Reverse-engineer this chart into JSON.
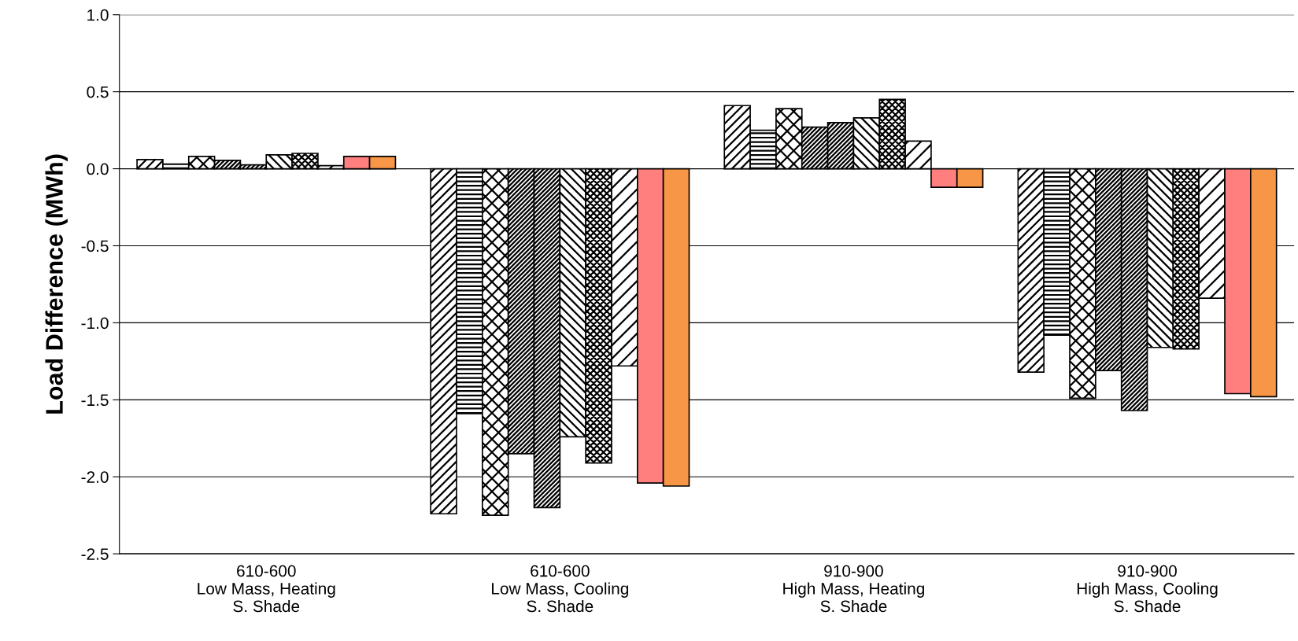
{
  "chart_data": {
    "type": "bar",
    "ylabel": "Load Difference (MWh)",
    "categories": [
      "610-600\nLow Mass, Heating\nS. Shade",
      "610-600\nLow Mass, Cooling\nS. Shade",
      "910-900\nHigh Mass, Heating\nS. Shade",
      "910-900\nHigh Mass, Cooling\nS. Shade"
    ],
    "series": [
      {
        "color": "#000000",
        "values": [
          0.06,
          -2.24,
          0.41,
          -1.32
        ]
      },
      {
        "color": "#000000",
        "values": [
          0.03,
          -1.59,
          0.25,
          -1.08
        ]
      },
      {
        "color": "#000000",
        "values": [
          0.08,
          -2.25,
          0.39,
          -1.49
        ]
      },
      {
        "color": "#000000",
        "values": [
          0.055,
          -1.85,
          0.27,
          -1.31
        ]
      },
      {
        "color": "#000000",
        "values": [
          0.025,
          -2.2,
          0.3,
          -1.57
        ]
      },
      {
        "color": "#000000",
        "values": [
          0.09,
          -1.74,
          0.33,
          -1.16
        ]
      },
      {
        "color": "#000000",
        "values": [
          0.1,
          -1.91,
          0.45,
          -1.17
        ]
      },
      {
        "color": "#000000",
        "values": [
          0.02,
          -1.28,
          0.18,
          -0.84
        ]
      },
      {
        "color": "#ff7f7f",
        "values": [
          0.08,
          -2.04,
          -0.12,
          -1.46
        ]
      },
      {
        "color": "#f79646",
        "values": [
          0.08,
          -2.06,
          -0.12,
          -1.48
        ]
      }
    ],
    "ylim": [
      -2.5,
      1.0
    ],
    "yticks": [
      {
        "value": -2.5,
        "label": "-2.5"
      },
      {
        "value": -2,
        "label": "-2.0"
      },
      {
        "value": -1.5,
        "label": "-1.5"
      },
      {
        "value": -1,
        "label": "-1.0"
      },
      {
        "value": -0.5,
        "label": "-0.5"
      },
      {
        "value": 0,
        "label": "0.0"
      },
      {
        "value": 0.5,
        "label": "0.5"
      },
      {
        "value": 1,
        "label": "1.0"
      }
    ],
    "grid": "y",
    "legend": false
  }
}
